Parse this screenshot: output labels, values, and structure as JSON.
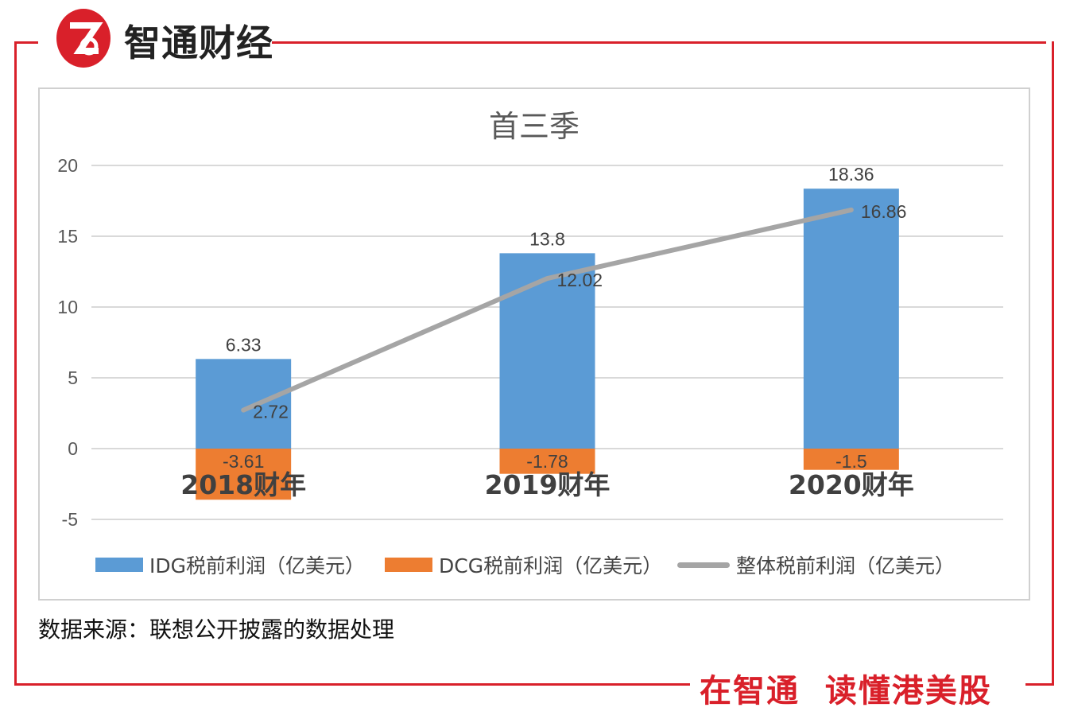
{
  "brand": {
    "name": "智通财经",
    "slogan": "在智通  读懂港美股",
    "accent": "#d9202a"
  },
  "source_note": "数据来源：联想公开披露的数据处理",
  "chart_data": {
    "type": "bar",
    "title": "首三季",
    "categories": [
      "2018财年",
      "2019财年",
      "2020财年"
    ],
    "series": [
      {
        "name": "IDG税前利润（亿美元）",
        "kind": "bar",
        "color": "#5b9bd5",
        "values": [
          6.33,
          13.8,
          18.36
        ]
      },
      {
        "name": "DCG税前利润（亿美元）",
        "kind": "bar",
        "color": "#ed7d31",
        "values": [
          -3.61,
          -1.78,
          -1.5
        ]
      },
      {
        "name": "整体税前利润（亿美元）",
        "kind": "line",
        "color": "#a5a5a5",
        "values": [
          2.72,
          12.02,
          16.86
        ]
      }
    ],
    "ylim": [
      -5,
      20
    ],
    "yticks": [
      -5,
      0,
      5,
      10,
      15,
      20
    ],
    "legend": "bottom",
    "grid": true
  }
}
